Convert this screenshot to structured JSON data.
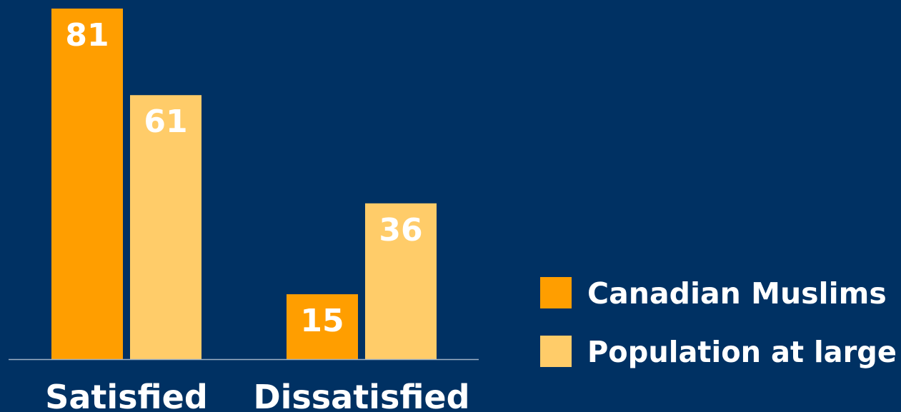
{
  "colors": {
    "background": "#003163",
    "series_0": "#ff9e00",
    "series_1": "#ffcc69",
    "baseline": "#9fb2c6",
    "text": "#ffffff"
  },
  "chart_data": {
    "type": "bar",
    "categories": [
      "Satisfied",
      "Dissatisfied"
    ],
    "series": [
      {
        "name": "Canadian Muslims",
        "values": [
          81,
          15
        ]
      },
      {
        "name": "Population at large",
        "values": [
          61,
          36
        ]
      }
    ],
    "ylim": [
      0,
      81
    ],
    "grid": false,
    "legend_position": "right"
  }
}
